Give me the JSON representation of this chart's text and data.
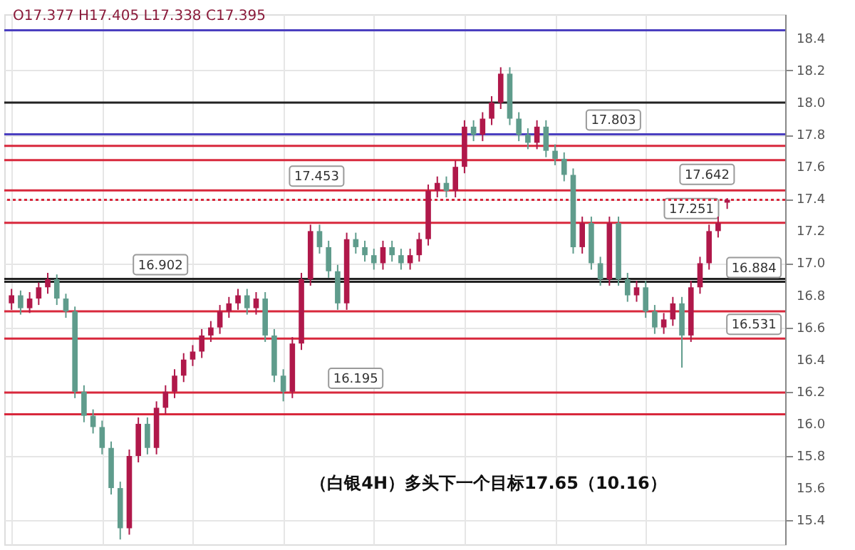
{
  "chart_data": {
    "type": "candlestick",
    "categories": [
      null,
      null,
      null,
      null,
      null,
      null,
      null,
      null,
      null,
      null,
      null,
      null,
      null,
      null,
      null,
      null,
      null,
      null,
      null,
      null,
      null,
      null,
      null,
      null,
      null,
      null,
      null,
      null,
      null,
      null,
      null,
      null,
      null,
      null,
      null,
      null,
      null,
      null,
      null,
      null,
      null,
      null,
      null,
      null,
      null,
      null,
      null,
      null,
      null,
      null,
      null,
      null,
      null,
      null,
      null,
      null,
      null,
      null,
      null,
      null,
      null,
      null,
      null,
      null,
      null,
      null,
      null,
      null,
      null,
      null,
      null,
      null,
      null,
      null,
      null,
      null,
      null,
      null,
      null,
      null
    ],
    "ohlc": [
      [
        16.75,
        16.84,
        16.71,
        16.8
      ],
      [
        16.8,
        16.83,
        16.68,
        16.72
      ],
      [
        16.72,
        16.82,
        16.69,
        16.78
      ],
      [
        16.78,
        16.88,
        16.74,
        16.85
      ],
      [
        16.85,
        16.94,
        16.81,
        16.9
      ],
      [
        16.9,
        16.93,
        16.74,
        16.78
      ],
      [
        16.78,
        16.81,
        16.66,
        16.7
      ],
      [
        16.7,
        16.73,
        16.16,
        16.2
      ],
      [
        16.2,
        16.24,
        16.01,
        16.05
      ],
      [
        16.05,
        16.09,
        15.94,
        15.98
      ],
      [
        15.98,
        16.02,
        15.81,
        15.85
      ],
      [
        15.85,
        15.89,
        15.56,
        15.6
      ],
      [
        15.6,
        15.64,
        15.28,
        15.35
      ],
      [
        15.35,
        15.84,
        15.31,
        15.8
      ],
      [
        15.8,
        16.04,
        15.76,
        16.0
      ],
      [
        16.0,
        16.04,
        15.81,
        15.85
      ],
      [
        15.85,
        16.14,
        15.81,
        16.1
      ],
      [
        16.1,
        16.24,
        16.06,
        16.2
      ],
      [
        16.2,
        16.34,
        16.16,
        16.3
      ],
      [
        16.3,
        16.44,
        16.26,
        16.4
      ],
      [
        16.4,
        16.49,
        16.36,
        16.45
      ],
      [
        16.45,
        16.59,
        16.41,
        16.55
      ],
      [
        16.55,
        16.64,
        16.51,
        16.6
      ],
      [
        16.6,
        16.74,
        16.56,
        16.7
      ],
      [
        16.7,
        16.79,
        16.66,
        16.75
      ],
      [
        16.75,
        16.84,
        16.71,
        16.8
      ],
      [
        16.8,
        16.84,
        16.68,
        16.72
      ],
      [
        16.72,
        16.82,
        16.68,
        16.78
      ],
      [
        16.78,
        16.82,
        16.51,
        16.55
      ],
      [
        16.55,
        16.59,
        16.26,
        16.3
      ],
      [
        16.3,
        16.34,
        16.14,
        16.2
      ],
      [
        16.2,
        16.54,
        16.16,
        16.5
      ],
      [
        16.5,
        16.94,
        16.46,
        16.9
      ],
      [
        16.9,
        17.24,
        16.86,
        17.2
      ],
      [
        17.2,
        17.24,
        17.06,
        17.1
      ],
      [
        17.1,
        17.14,
        16.91,
        16.95
      ],
      [
        16.95,
        16.99,
        16.71,
        16.75
      ],
      [
        16.75,
        17.19,
        16.71,
        17.15
      ],
      [
        17.15,
        17.19,
        17.06,
        17.1
      ],
      [
        17.1,
        17.14,
        17.01,
        17.05
      ],
      [
        17.05,
        17.09,
        16.96,
        17.0
      ],
      [
        17.0,
        17.14,
        16.96,
        17.1
      ],
      [
        17.1,
        17.14,
        17.01,
        17.05
      ],
      [
        17.05,
        17.09,
        16.96,
        17.0
      ],
      [
        17.0,
        17.09,
        16.96,
        17.05
      ],
      [
        17.05,
        17.19,
        17.01,
        17.15
      ],
      [
        17.15,
        17.49,
        17.11,
        17.45
      ],
      [
        17.45,
        17.54,
        17.41,
        17.5
      ],
      [
        17.5,
        17.54,
        17.41,
        17.45
      ],
      [
        17.45,
        17.64,
        17.41,
        17.6
      ],
      [
        17.6,
        17.89,
        17.56,
        17.85
      ],
      [
        17.85,
        17.89,
        17.76,
        17.8
      ],
      [
        17.8,
        17.94,
        17.76,
        17.9
      ],
      [
        17.9,
        18.04,
        17.86,
        18.0
      ],
      [
        18.0,
        18.22,
        17.96,
        18.18
      ],
      [
        18.18,
        18.22,
        17.86,
        17.9
      ],
      [
        17.9,
        17.94,
        17.76,
        17.8
      ],
      [
        17.8,
        17.84,
        17.71,
        17.75
      ],
      [
        17.75,
        17.89,
        17.71,
        17.85
      ],
      [
        17.85,
        17.89,
        17.66,
        17.7
      ],
      [
        17.7,
        17.74,
        17.61,
        17.65
      ],
      [
        17.65,
        17.69,
        17.51,
        17.55
      ],
      [
        17.55,
        17.59,
        17.06,
        17.1
      ],
      [
        17.1,
        17.29,
        17.06,
        17.25
      ],
      [
        17.25,
        17.29,
        16.96,
        17.0
      ],
      [
        17.0,
        17.04,
        16.86,
        16.9
      ],
      [
        16.9,
        17.29,
        16.86,
        17.25
      ],
      [
        17.25,
        17.29,
        16.86,
        16.9
      ],
      [
        16.9,
        16.94,
        16.76,
        16.8
      ],
      [
        16.8,
        16.89,
        16.76,
        16.85
      ],
      [
        16.85,
        16.89,
        16.66,
        16.7
      ],
      [
        16.7,
        16.74,
        16.56,
        16.6
      ],
      [
        16.6,
        16.69,
        16.56,
        16.65
      ],
      [
        16.65,
        16.79,
        16.61,
        16.75
      ],
      [
        16.75,
        16.79,
        16.35,
        16.55
      ],
      [
        16.55,
        16.89,
        16.51,
        16.85
      ],
      [
        16.85,
        17.04,
        16.81,
        17.0
      ],
      [
        17.0,
        17.24,
        16.96,
        17.2
      ],
      [
        17.2,
        17.29,
        17.16,
        17.25
      ],
      [
        17.377,
        17.405,
        17.338,
        17.395
      ]
    ],
    "ylim": [
      15.25,
      18.55
    ],
    "yticks": [
      15.4,
      15.6,
      15.8,
      {
        "value": 16.0,
        "label": "16.0"
      },
      16.2,
      16.4,
      16.6,
      16.8,
      {
        "value": 17.0,
        "label": "17.0"
      },
      17.2,
      17.4,
      17.6,
      17.8,
      {
        "value": 18.0,
        "label": "18.0"
      },
      18.2,
      18.4
    ],
    "grid": true,
    "tick_labels": "y",
    "ref_lines": [
      {
        "axis": "y",
        "value": 16.902,
        "label": "16.902",
        "color": "#222222"
      },
      {
        "axis": "y",
        "value": 16.195,
        "label": "16.195",
        "color": "#d8283c"
      },
      {
        "axis": "y",
        "value": 17.803,
        "label": "17.803",
        "color": "#4b3fc0"
      },
      {
        "axis": "y",
        "value": 17.642,
        "label": "17.642",
        "color": "#d8283c"
      },
      {
        "axis": "y",
        "value": 17.453,
        "label": "17.453",
        "color": "#d8283c"
      },
      {
        "axis": "y",
        "value": 17.251,
        "label": "17.251",
        "color": "#d8283c"
      },
      {
        "axis": "y",
        "value": 16.884,
        "label": "16.884",
        "color": "#222222"
      },
      {
        "axis": "y",
        "value": 16.531,
        "label": "16.531",
        "color": "#d8283c"
      },
      {
        "axis": "y",
        "value": 18.45,
        "label": null,
        "color": "#4b3fc0"
      },
      {
        "axis": "y",
        "value": 18.0,
        "label": null,
        "color": "#222222"
      },
      {
        "axis": "y",
        "value": 17.73,
        "label": null,
        "color": "#d8283c"
      },
      {
        "axis": "y",
        "value": 16.7,
        "label": null,
        "color": "#d8283c"
      },
      {
        "axis": "y",
        "value": 16.06,
        "label": null,
        "color": "#d8283c"
      },
      {
        "axis": "y",
        "value": 17.395,
        "label": null,
        "color": "#d8283c",
        "line_style": "dotted"
      }
    ],
    "annotations": [
      "O17.377 H17.405 L17.338 C17.395",
      "（白银4H）多头下一个目标17.65（10.16）"
    ]
  }
}
